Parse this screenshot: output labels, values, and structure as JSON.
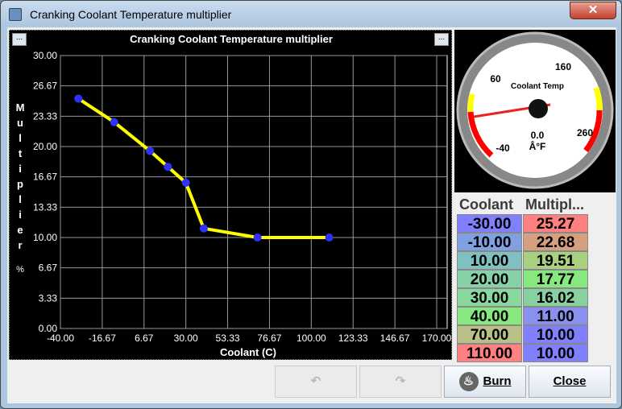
{
  "window": {
    "title": "Cranking Coolant Temperature multiplier",
    "close": "✕"
  },
  "chart_data": {
    "type": "line",
    "title": "Cranking Coolant Temperature multiplier",
    "xlabel": "Coolant (C)",
    "ylabel": "Multiplier",
    "yunit": "%",
    "xlim": [
      -40,
      170
    ],
    "ylim": [
      0,
      30
    ],
    "grid": true,
    "xticks": [
      "-40.00",
      "-16.67",
      "6.67",
      "30.00",
      "53.33",
      "76.67",
      "100.00",
      "123.33",
      "146.67",
      "170.00"
    ],
    "yticks": [
      "0.00",
      "3.33",
      "6.67",
      "10.00",
      "13.33",
      "16.67",
      "20.00",
      "23.33",
      "26.67",
      "30.00"
    ],
    "x": [
      -30,
      -10,
      10,
      20,
      30,
      40,
      70,
      110
    ],
    "y": [
      25.27,
      22.68,
      19.51,
      17.77,
      16.02,
      11.0,
      10.0,
      10.0
    ],
    "line_color": "#ffff00",
    "point_color": "#3030ff"
  },
  "gauge": {
    "title": "Coolant Temp",
    "value": "0.0",
    "unit": "Â°F",
    "labels": [
      "-40",
      "60",
      "160",
      "260"
    ]
  },
  "table": {
    "headers": [
      "Coolant",
      "Multipl..."
    ],
    "rows": [
      [
        "-30.00",
        "25.27"
      ],
      [
        "-10.00",
        "22.68"
      ],
      [
        "10.00",
        "19.51"
      ],
      [
        "20.00",
        "17.77"
      ],
      [
        "30.00",
        "16.02"
      ],
      [
        "40.00",
        "11.00"
      ],
      [
        "70.00",
        "10.00"
      ],
      [
        "110.00",
        "10.00"
      ]
    ],
    "colors": [
      [
        "#8080ff",
        "#ff8080"
      ],
      [
        "#80a0e0",
        "#d4a080"
      ],
      [
        "#80c0c0",
        "#a8d080"
      ],
      [
        "#88d0a8",
        "#88e880"
      ],
      [
        "#88d8a0",
        "#88d0a0"
      ],
      [
        "#88e880",
        "#8890f0"
      ],
      [
        "#b8c088",
        "#8080ff"
      ],
      [
        "#ff8080",
        "#8080ff"
      ]
    ]
  },
  "buttons": {
    "undo": "↶",
    "redo": "↷",
    "burn": "Burn",
    "close": "Close"
  },
  "mini_button": "..."
}
